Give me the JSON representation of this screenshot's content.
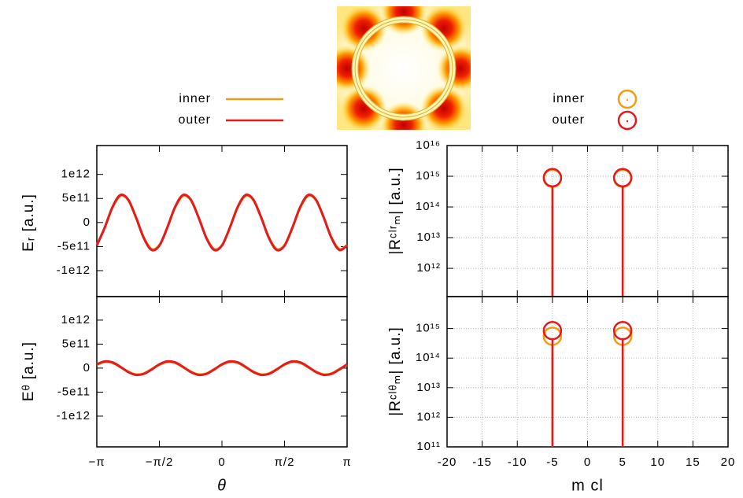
{
  "chart_data": [
    {
      "type": "line",
      "ylabel": "Eᵣ [a.u.]",
      "x": [
        -3.1416,
        -2.9452,
        -2.7489,
        -2.5525,
        -2.3562,
        -2.1598,
        -1.9635,
        -1.7671,
        -1.5708,
        -1.3744,
        -1.1781,
        -0.9817,
        -0.7854,
        -0.589,
        -0.3927,
        -0.1963,
        0,
        0.1963,
        0.3927,
        0.589,
        0.7854,
        0.9817,
        1.1781,
        1.3744,
        1.5708,
        1.7671,
        1.9635,
        2.1598,
        2.3562,
        2.5525,
        2.7489,
        2.9452,
        3.1416
      ],
      "xlim": [
        -3.1416,
        3.1416
      ],
      "ylim": [
        -1540000000000.0,
        1600000000000.0
      ],
      "yticks": [
        {
          "value": -1000000000000.0,
          "label": "-1e12"
        },
        {
          "value": -500000000000.0,
          "label": "-5e11"
        },
        0,
        {
          "value": 500000000000.0,
          "label": "5e11"
        },
        {
          "value": 1000000000000.0,
          "label": "1e12"
        }
      ],
      "grid": false,
      "series": [
        {
          "name": "inner",
          "color": "#f39c12",
          "values": [
            -470000000000.0,
            -110000000000.0,
            310000000000.0,
            550000000000.0,
            470000000000.0,
            110000000000.0,
            -310000000000.0,
            -550000000000.0,
            -470000000000.0,
            -110000000000.0,
            310000000000.0,
            550000000000.0,
            470000000000.0,
            110000000000.0,
            -310000000000.0,
            -550000000000.0,
            -470000000000.0,
            -110000000000.0,
            310000000000.0,
            550000000000.0,
            470000000000.0,
            110000000000.0,
            -310000000000.0,
            -550000000000.0,
            -470000000000.0,
            -110000000000.0,
            310000000000.0,
            550000000000.0,
            470000000000.0,
            110000000000.0,
            -310000000000.0,
            -550000000000.0,
            -470000000000.0
          ]
        },
        {
          "name": "outer",
          "color": "#e41a1c",
          "values": [
            -480000000000.0,
            -110000000000.0,
            320000000000.0,
            570000000000.0,
            480000000000.0,
            110000000000.0,
            -320000000000.0,
            -570000000000.0,
            -480000000000.0,
            -110000000000.0,
            320000000000.0,
            570000000000.0,
            480000000000.0,
            110000000000.0,
            -320000000000.0,
            -570000000000.0,
            -480000000000.0,
            -110000000000.0,
            320000000000.0,
            570000000000.0,
            480000000000.0,
            110000000000.0,
            -320000000000.0,
            -570000000000.0,
            -480000000000.0,
            -110000000000.0,
            320000000000.0,
            570000000000.0,
            480000000000.0,
            110000000000.0,
            -320000000000.0,
            -570000000000.0,
            -480000000000.0
          ]
        }
      ]
    },
    {
      "type": "line",
      "ylabel": "Eᶿ [a.u.]",
      "xlabel": "θ",
      "x": [
        -3.1416,
        -2.9452,
        -2.7489,
        -2.5525,
        -2.3562,
        -2.1598,
        -1.9635,
        -1.7671,
        -1.5708,
        -1.3744,
        -1.1781,
        -0.9817,
        -0.7854,
        -0.589,
        -0.3927,
        -0.1963,
        0,
        0.1963,
        0.3927,
        0.589,
        0.7854,
        0.9817,
        1.1781,
        1.3744,
        1.5708,
        1.7671,
        1.9635,
        2.1598,
        2.3562,
        2.5525,
        2.7489,
        2.9452,
        3.1416
      ],
      "xlim": [
        -3.1416,
        3.1416
      ],
      "ylim": [
        -1640000000000.0,
        1490000000000.0
      ],
      "xticks": [
        {
          "value": -3.1416,
          "label": "−π"
        },
        {
          "value": -1.5708,
          "label": "−π/2"
        },
        0,
        {
          "value": 1.5708,
          "label": "π/2"
        },
        {
          "value": 3.1416,
          "label": "π"
        }
      ],
      "yticks": [
        {
          "value": -1000000000000.0,
          "label": "-1e12"
        },
        {
          "value": -500000000000.0,
          "label": "-5e11"
        },
        0,
        {
          "value": 500000000000.0,
          "label": "5e11"
        },
        {
          "value": 1000000000000.0,
          "label": "1e12"
        }
      ],
      "grid": false,
      "series": [
        {
          "color": "#f39c12",
          "values": [
            70000000000.0,
            130000000000.0,
            110000000000.0,
            20000000000.0,
            -70000000000.0,
            -130000000000.0,
            -110000000000.0,
            -20000000000.0,
            70000000000.0,
            130000000000.0,
            110000000000.0,
            20000000000.0,
            -70000000000.0,
            -130000000000.0,
            -110000000000.0,
            -20000000000.0,
            70000000000.0,
            130000000000.0,
            110000000000.0,
            20000000000.0,
            -70000000000.0,
            -130000000000.0,
            -110000000000.0,
            -20000000000.0,
            70000000000.0,
            130000000000.0,
            110000000000.0,
            20000000000.0,
            -70000000000.0,
            -130000000000.0,
            -110000000000.0,
            -20000000000.0,
            70000000000.0
          ]
        },
        {
          "color": "#e41a1c",
          "values": [
            80000000000.0,
            140000000000.0,
            120000000000.0,
            30000000000.0,
            -80000000000.0,
            -140000000000.0,
            -120000000000.0,
            -30000000000.0,
            80000000000.0,
            140000000000.0,
            120000000000.0,
            30000000000.0,
            -80000000000.0,
            -140000000000.0,
            -120000000000.0,
            -30000000000.0,
            80000000000.0,
            140000000000.0,
            120000000000.0,
            30000000000.0,
            -80000000000.0,
            -140000000000.0,
            -120000000000.0,
            -30000000000.0,
            80000000000.0,
            140000000000.0,
            120000000000.0,
            30000000000.0,
            -80000000000.0,
            -140000000000.0,
            -120000000000.0,
            -30000000000.0,
            80000000000.0
          ]
        }
      ]
    },
    {
      "type": "stem",
      "ylabel": "|Rᶜˡʳₘ| [a.u.]",
      "logy": true,
      "x": [
        -5,
        5
      ],
      "xlim": [
        -20,
        20
      ],
      "ylim": [
        120000000000.0,
        1e+16
      ],
      "yticks": [
        {
          "value": 1000000000000.0,
          "label": "10¹²"
        },
        {
          "value": 10000000000000.0,
          "label": "10¹³"
        },
        {
          "value": 100000000000000.0,
          "label": "10¹⁴"
        },
        {
          "value": 1000000000000000.0,
          "label": "10¹⁵"
        },
        {
          "value": 1e+16,
          "label": "10¹⁶"
        }
      ],
      "grid": true,
      "series": [
        {
          "name": "inner",
          "color": "#f39c12",
          "values": [
            850000000000000.0,
            850000000000000.0
          ]
        },
        {
          "name": "outer",
          "color": "#e41a1c",
          "values": [
            900000000000000.0,
            900000000000000.0
          ]
        }
      ]
    },
    {
      "type": "stem",
      "ylabel": "|Rᶜˡᶿₘ| [a.u.]",
      "xlabel": "m cl",
      "logy": true,
      "x": [
        -5,
        5
      ],
      "xlim": [
        -20,
        20
      ],
      "ylim": [
        100000000000.0,
        1.2e+16
      ],
      "xticks": [
        -20,
        -15,
        -10,
        -5,
        0,
        5,
        10,
        15,
        20
      ],
      "yticks": [
        {
          "value": 100000000000.0,
          "label": "10¹¹"
        },
        {
          "value": 1000000000000.0,
          "label": "10¹²"
        },
        {
          "value": 10000000000000.0,
          "label": "10¹³"
        },
        {
          "value": 100000000000000.0,
          "label": "10¹⁴"
        },
        {
          "value": 1000000000000000.0,
          "label": "10¹⁵"
        }
      ],
      "grid": true,
      "series": [
        {
          "color": "#f39c12",
          "values": [
            550000000000000.0,
            550000000000000.0
          ]
        },
        {
          "color": "#e41a1c",
          "values": [
            850000000000000.0,
            850000000000000.0
          ]
        }
      ]
    }
  ]
}
